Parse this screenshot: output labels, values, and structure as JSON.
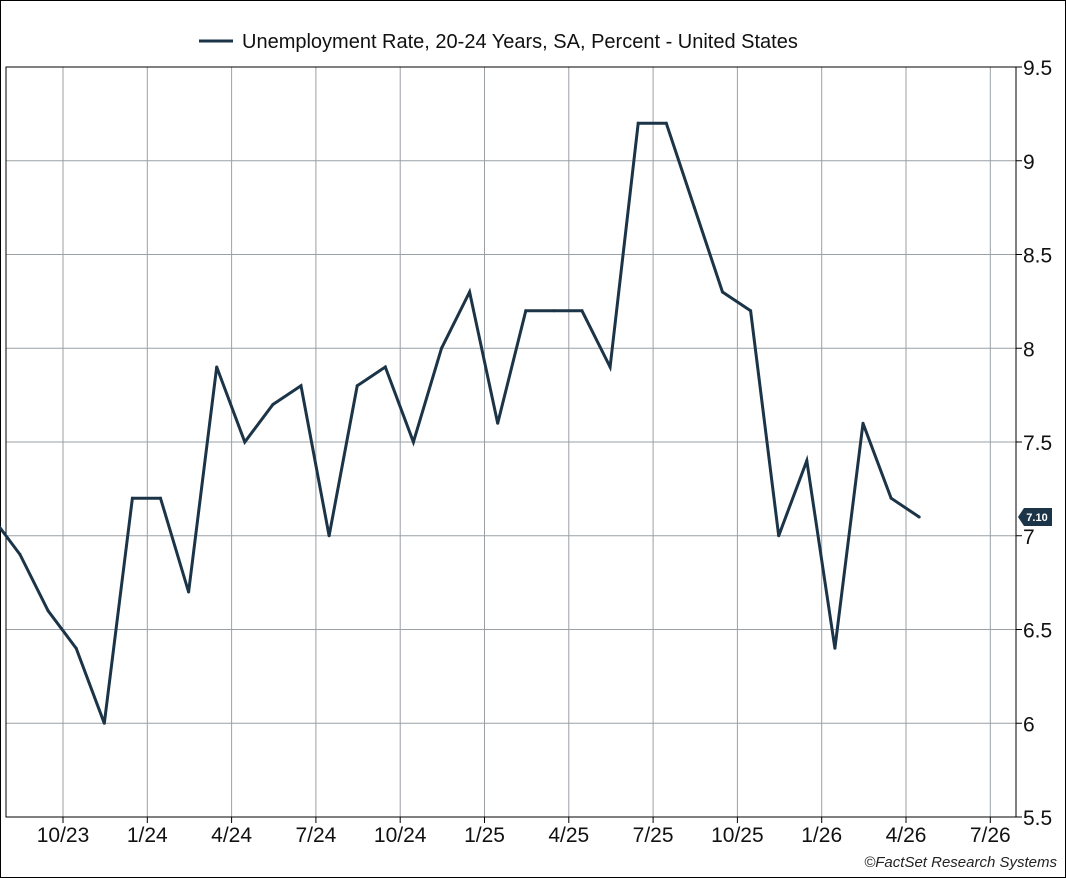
{
  "chart_data": {
    "type": "line",
    "legend": "Unemployment Rate, 20-24 Years, SA, Percent - United States",
    "legend_position": "top-center",
    "series": [
      {
        "name": "Unemployment Rate, 20-24 Years, SA, Percent - United States",
        "color": "#1b3447",
        "x": [
          "2023-08",
          "2023-09",
          "2023-10",
          "2023-11",
          "2023-12",
          "2024-01",
          "2024-02",
          "2024-03",
          "2024-04",
          "2024-05",
          "2024-06",
          "2024-07",
          "2024-08",
          "2024-09",
          "2024-10",
          "2024-11",
          "2024-12",
          "2025-01",
          "2025-02",
          "2025-03",
          "2025-04",
          "2025-05",
          "2025-06",
          "2025-07",
          "2025-08",
          "2025-09",
          "2025-10",
          "2025-11",
          "2025-12",
          "2026-01",
          "2026-02",
          "2026-03",
          "2026-04",
          "2026-05",
          "2026-06"
        ],
        "values": [
          7.0,
          7.1,
          6.9,
          6.6,
          6.4,
          6.0,
          7.2,
          7.2,
          6.7,
          7.9,
          7.5,
          7.7,
          7.8,
          7.0,
          7.8,
          7.9,
          7.5,
          8.0,
          8.3,
          7.6,
          8.2,
          8.2,
          8.2,
          7.9,
          9.2,
          9.2,
          8.75,
          8.3,
          8.2,
          7.0,
          7.4,
          6.4,
          7.6,
          7.2,
          7.1
        ]
      }
    ],
    "last_value_label": "7.10",
    "x_ticks": [
      "10/23",
      "1/24",
      "4/24",
      "7/24",
      "10/24",
      "1/25",
      "4/25",
      "7/25",
      "10/25",
      "1/26",
      "4/26",
      "7/26"
    ],
    "y_ticks": [
      "5.5",
      "6",
      "6.5",
      "7",
      "7.5",
      "8",
      "8.5",
      "9",
      "9.5"
    ],
    "ylim": [
      5.5,
      9.5
    ],
    "y_axis_side": "right",
    "grid": true,
    "credit": "©FactSet Research Systems"
  }
}
